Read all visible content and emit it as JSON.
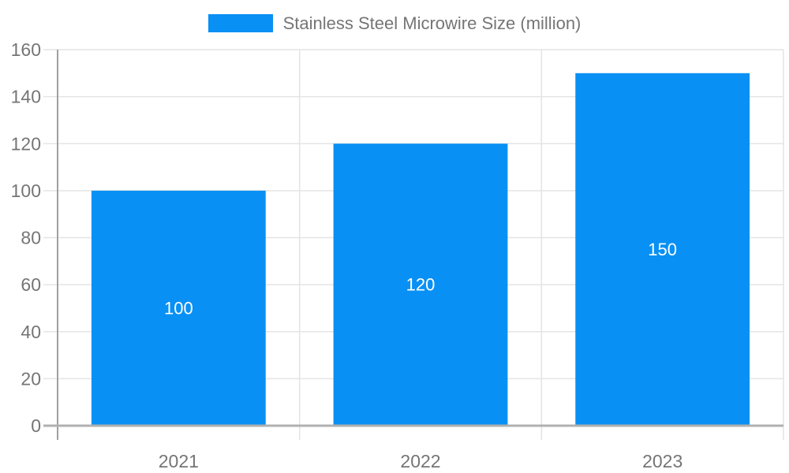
{
  "legend": {
    "label": "Stainless Steel Microwire Size (million)"
  },
  "chart_data": {
    "type": "bar",
    "title": "",
    "xlabel": "",
    "ylabel": "",
    "categories": [
      "2021",
      "2022",
      "2023"
    ],
    "values": [
      100,
      120,
      150
    ],
    "value_labels": [
      "100",
      "120",
      "150"
    ],
    "series_name": "Stainless Steel Microwire Size (million)",
    "ylim": [
      0,
      160
    ],
    "yticks": [
      0,
      20,
      40,
      60,
      80,
      100,
      120,
      140,
      160
    ],
    "grid": true,
    "legend_position": "top",
    "colors": {
      "bar": "#0890f4",
      "value_label": "#ffffff",
      "tick_label": "#757575",
      "gridline": "#e4e4e4",
      "baseline": "#b0b0b0",
      "axis_line": "#a0a0a0"
    }
  }
}
